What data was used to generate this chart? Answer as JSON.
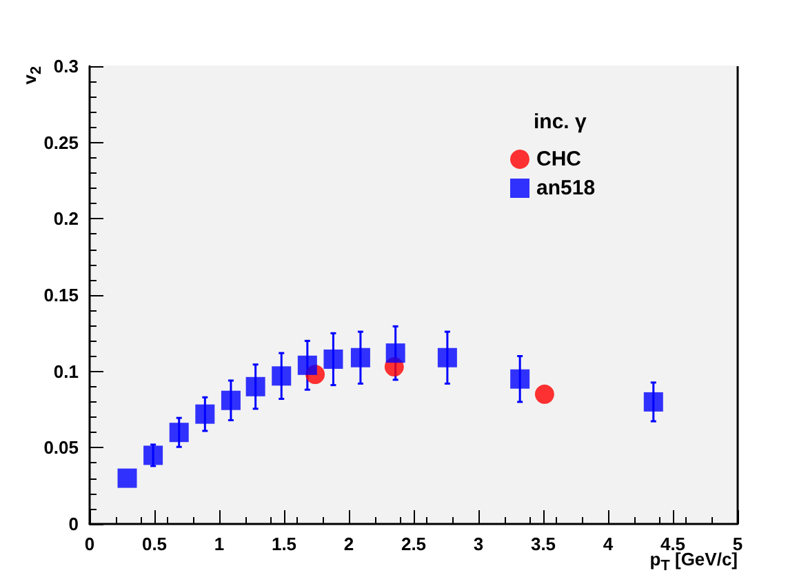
{
  "chart_data": {
    "type": "scatter",
    "xlabel": "p$_{T}$ [GeV/c]",
    "ylabel": "v$_{2}$",
    "legend_title": "inc. γ",
    "legend": "top right",
    "grid": false,
    "xlim": [
      0,
      5
    ],
    "xticks": [
      0,
      0.5,
      1,
      1.5,
      2,
      2.5,
      3,
      3.5,
      4,
      4.5,
      5
    ],
    "ylim": [
      0,
      0.3
    ],
    "yticks": [
      0,
      0.05,
      0.1,
      0.15,
      0.2,
      0.25,
      0.3
    ],
    "series": [
      {
        "name": "CHC",
        "color": "#ff0000",
        "marker": "circle",
        "x": [
          1.74,
          2.35,
          3.51
        ],
        "values": [
          0.098,
          0.103,
          0.085
        ]
      },
      {
        "name": "an518",
        "color": "#0000ff",
        "marker": "square",
        "x": [
          0.29,
          0.49,
          0.69,
          0.89,
          1.09,
          1.28,
          1.48,
          1.68,
          1.88,
          2.09,
          2.36,
          2.76,
          3.32,
          4.35
        ],
        "values": [
          0.03,
          0.045,
          0.06,
          0.072,
          0.081,
          0.09,
          0.097,
          0.104,
          0.108,
          0.109,
          0.112,
          0.109,
          0.095,
          0.08
        ],
        "errors": [
          null,
          0.007,
          0.0095,
          0.011,
          0.013,
          0.0145,
          0.015,
          0.016,
          0.017,
          0.017,
          0.0175,
          0.017,
          0.015,
          0.0127
        ]
      }
    ]
  }
}
